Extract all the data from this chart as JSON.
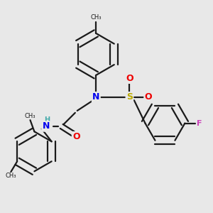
{
  "background_color": "#e8e8e8",
  "bond_color": "#1a1a1a",
  "N_color": "#0000ee",
  "O_color": "#ee0000",
  "S_color": "#bbaa00",
  "F_color": "#cc44bb",
  "H_color": "#44aaaa",
  "line_width": 1.6,
  "figsize": [
    3.0,
    3.0
  ],
  "dpi": 100,
  "xlim": [
    0,
    10
  ],
  "ylim": [
    0,
    10
  ]
}
